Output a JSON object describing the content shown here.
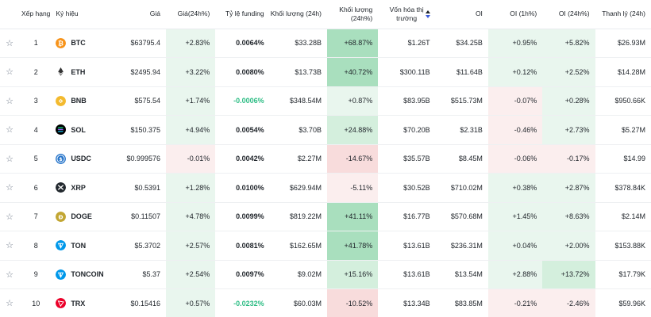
{
  "headers": {
    "rank": "Xếp hạng",
    "symbol": "Ký hiệu",
    "price": "Giá",
    "change24h": "Giá(24h%)",
    "funding": "Tỷ lệ funding",
    "volume": "Khối lượng (24h)",
    "volume_change": "Khối lượng (24h%)",
    "mcap_line1": "Vốn hóa thị",
    "mcap_line2": "trường",
    "oi": "OI",
    "oi_1h": "OI (1h%)",
    "oi_24h": "OI (24h%)",
    "liquidation": "Thanh lý (24h)"
  },
  "colors": {
    "pos_light": "#e9f6ee",
    "pos_medium": "#d4efdd",
    "pos_strong": "#a9dfbe",
    "neg_light": "#fbeeee",
    "neg_medium": "#f8dcdc",
    "funding_negative": "#2ebd85"
  },
  "rows": [
    {
      "rank": "1",
      "symbol": "BTC",
      "icon": "btc-icon",
      "price": "$63795.4",
      "change24h": "+2.83%",
      "funding": "0.0064%",
      "volume": "$33.28B",
      "volume_change": "+68.87%",
      "mcap": "$1.26T",
      "oi": "$34.25B",
      "oi_1h": "+0.95%",
      "oi_24h": "+5.82%",
      "liquidation": "$26.93M"
    },
    {
      "rank": "2",
      "symbol": "ETH",
      "icon": "eth-icon",
      "price": "$2495.94",
      "change24h": "+3.22%",
      "funding": "0.0080%",
      "volume": "$13.73B",
      "volume_change": "+40.72%",
      "mcap": "$300.11B",
      "oi": "$11.64B",
      "oi_1h": "+0.12%",
      "oi_24h": "+2.52%",
      "liquidation": "$14.28M"
    },
    {
      "rank": "3",
      "symbol": "BNB",
      "icon": "bnb-icon",
      "price": "$575.54",
      "change24h": "+1.74%",
      "funding": "-0.0006%",
      "volume": "$348.54M",
      "volume_change": "+0.87%",
      "mcap": "$83.95B",
      "oi": "$515.73M",
      "oi_1h": "-0.07%",
      "oi_24h": "+0.28%",
      "liquidation": "$950.66K"
    },
    {
      "rank": "4",
      "symbol": "SOL",
      "icon": "sol-icon",
      "price": "$150.375",
      "change24h": "+4.94%",
      "funding": "0.0054%",
      "volume": "$3.70B",
      "volume_change": "+24.88%",
      "mcap": "$70.20B",
      "oi": "$2.31B",
      "oi_1h": "-0.46%",
      "oi_24h": "+2.73%",
      "liquidation": "$5.27M"
    },
    {
      "rank": "5",
      "symbol": "USDC",
      "icon": "usdc-icon",
      "price": "$0.999576",
      "change24h": "-0.01%",
      "funding": "0.0042%",
      "volume": "$2.27M",
      "volume_change": "-14.67%",
      "mcap": "$35.57B",
      "oi": "$8.45M",
      "oi_1h": "-0.06%",
      "oi_24h": "-0.17%",
      "liquidation": "$14.99"
    },
    {
      "rank": "6",
      "symbol": "XRP",
      "icon": "xrp-icon",
      "price": "$0.5391",
      "change24h": "+1.28%",
      "funding": "0.0100%",
      "volume": "$629.94M",
      "volume_change": "-5.11%",
      "mcap": "$30.52B",
      "oi": "$710.02M",
      "oi_1h": "+0.38%",
      "oi_24h": "+2.87%",
      "liquidation": "$378.84K"
    },
    {
      "rank": "7",
      "symbol": "DOGE",
      "icon": "doge-icon",
      "price": "$0.11507",
      "change24h": "+4.78%",
      "funding": "0.0099%",
      "volume": "$819.22M",
      "volume_change": "+41.11%",
      "mcap": "$16.77B",
      "oi": "$570.68M",
      "oi_1h": "+1.45%",
      "oi_24h": "+8.63%",
      "liquidation": "$2.14M"
    },
    {
      "rank": "8",
      "symbol": "TON",
      "icon": "ton-icon",
      "price": "$5.3702",
      "change24h": "+2.57%",
      "funding": "0.0081%",
      "volume": "$162.65M",
      "volume_change": "+41.78%",
      "mcap": "$13.61B",
      "oi": "$236.31M",
      "oi_1h": "+0.04%",
      "oi_24h": "+2.00%",
      "liquidation": "$153.88K"
    },
    {
      "rank": "9",
      "symbol": "TONCOIN",
      "icon": "toncoin-icon",
      "price": "$5.37",
      "change24h": "+2.54%",
      "funding": "0.0097%",
      "volume": "$9.02M",
      "volume_change": "+15.16%",
      "mcap": "$13.61B",
      "oi": "$13.54M",
      "oi_1h": "+2.88%",
      "oi_24h": "+13.72%",
      "liquidation": "$17.79K"
    },
    {
      "rank": "10",
      "symbol": "TRX",
      "icon": "trx-icon",
      "price": "$0.15416",
      "change24h": "+0.57%",
      "funding": "-0.0232%",
      "volume": "$60.03M",
      "volume_change": "-10.52%",
      "mcap": "$13.34B",
      "oi": "$83.85M",
      "oi_1h": "-0.21%",
      "oi_24h": "-2.46%",
      "liquidation": "$59.96K"
    }
  ]
}
